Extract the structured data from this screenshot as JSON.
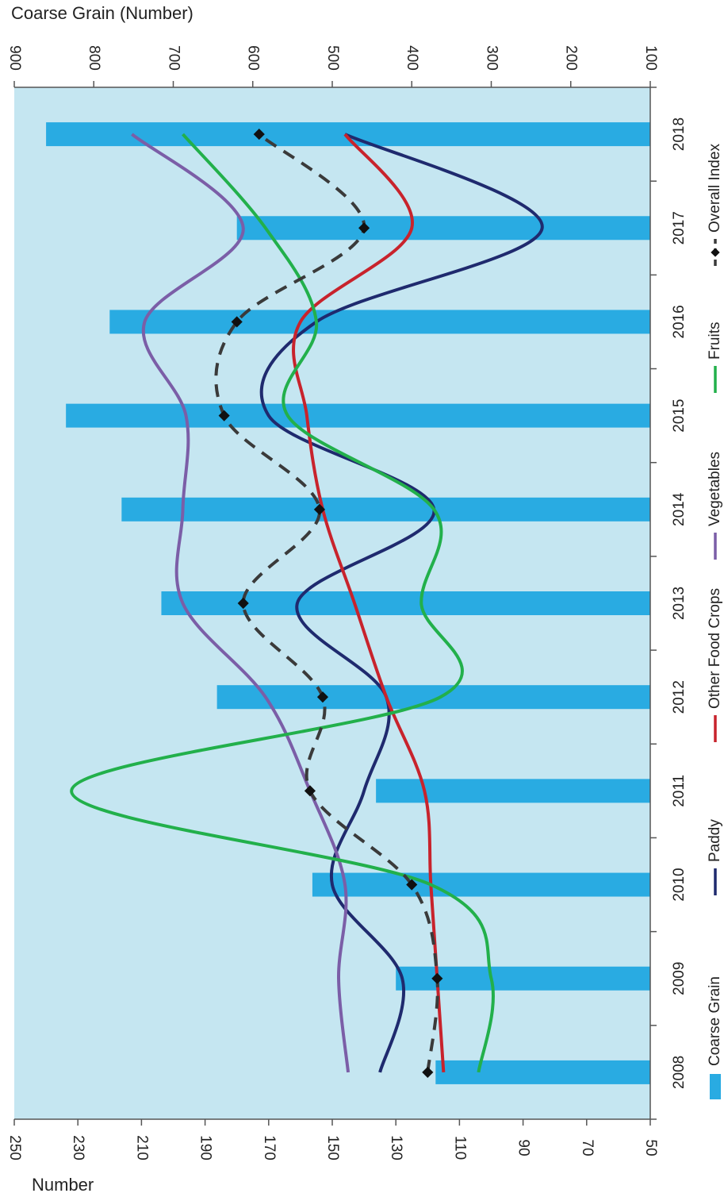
{
  "chart_data": {
    "type": "bar+line",
    "categories": [
      "2008",
      "2009",
      "2010",
      "2011",
      "2012",
      "2013",
      "2014",
      "2015",
      "2016",
      "2017",
      "2018"
    ],
    "bar_series": {
      "name": "Coarse Grain",
      "axis": "secondary",
      "values": [
        370,
        420,
        525,
        445,
        645,
        715,
        765,
        835,
        780,
        620,
        860
      ]
    },
    "line_series": [
      {
        "name": "Paddy",
        "color": "#1f2a6e",
        "dash": "solid",
        "values": [
          135,
          128,
          150,
          140,
          133,
          161,
          118,
          170,
          155,
          84,
          146
        ]
      },
      {
        "name": "Other Food Crops",
        "color": "#c8232c",
        "dash": "solid",
        "values": [
          115,
          117,
          119,
          121,
          133,
          143,
          153,
          158,
          160,
          125,
          146
        ]
      },
      {
        "name": "Vegetables",
        "color": "#7b5ea7",
        "dash": "solid",
        "values": [
          145,
          148,
          146,
          157,
          171,
          197,
          197,
          196,
          209,
          178,
          213
        ]
      },
      {
        "name": "Fruits",
        "color": "#22b04b",
        "dash": "solid",
        "values": [
          104,
          100,
          119,
          232,
          116,
          122,
          118,
          164,
          155,
          171,
          197
        ]
      },
      {
        "name": "Overall Index",
        "color": "#3a3a3a",
        "dash": "dashed",
        "markers": true,
        "values": [
          120,
          117,
          125,
          157,
          153,
          178,
          154,
          184,
          180,
          140,
          173
        ]
      }
    ],
    "primary_axis": {
      "label": "Number",
      "ticks": [
        250,
        230,
        210,
        190,
        170,
        150,
        130,
        110,
        90,
        70,
        50
      ],
      "range": [
        50,
        250
      ]
    },
    "secondary_axis": {
      "label": "Coarse Grain (Number)",
      "ticks": [
        900,
        800,
        700,
        600,
        500,
        400,
        300,
        200,
        100
      ],
      "range": [
        100,
        900
      ]
    },
    "plot_background": "#c5e6f1",
    "bar_color": "#29abe2",
    "grid": false,
    "legend_position": "right",
    "orientation": "rotated"
  }
}
